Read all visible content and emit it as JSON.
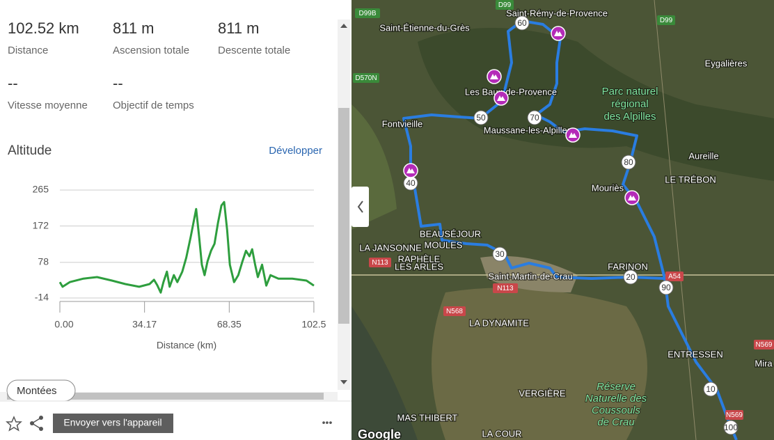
{
  "stats": [
    {
      "value": "102.52 km",
      "label": "Distance"
    },
    {
      "value": "811 m",
      "label": "Ascension totale"
    },
    {
      "value": "811 m",
      "label": "Descente totale"
    },
    {
      "value": "--",
      "label": "Vitesse moyenne"
    },
    {
      "value": "--",
      "label": "Objectif de temps"
    }
  ],
  "altitude": {
    "heading": "Altitude",
    "expand_link": "Développer"
  },
  "chart_data": {
    "type": "line",
    "x_label": "Distance (km)",
    "color": "#2e9e3e",
    "x": [
      0,
      1.1,
      4,
      9.5,
      15,
      21,
      26.4,
      32,
      36.2,
      38,
      39.3,
      40.7,
      41.8,
      43.2,
      44.3,
      46,
      47.4,
      49.4,
      51,
      52.8,
      53.9,
      55,
      56.2,
      57.3,
      58.4,
      59.6,
      61,
      62.4,
      63.8,
      65.2,
      66.3,
      67.5,
      68.6,
      70.3,
      72,
      73.7,
      75.1,
      76.5,
      77.6,
      78.8,
      79.9,
      81.6,
      83.3,
      85,
      88.2,
      93.8,
      99.5,
      102.52
    ],
    "values": [
      27,
      15,
      27,
      36,
      40,
      31,
      22,
      15,
      22,
      33,
      19,
      0,
      27,
      54,
      15,
      45,
      27,
      54,
      90,
      144,
      180,
      216,
      144,
      72,
      45,
      81,
      108,
      126,
      180,
      225,
      234,
      162,
      72,
      27,
      45,
      81,
      108,
      94,
      112,
      72,
      40,
      72,
      18,
      45,
      36,
      36,
      31,
      18
    ],
    "xlim": [
      0,
      102.52
    ],
    "xticks": [
      {
        "value": 0,
        "label": "0.00"
      },
      34.17,
      68.35,
      102.5
    ],
    "ylim": [
      -14,
      265
    ],
    "yticks": [
      -14,
      78,
      172,
      265
    ],
    "grid": true
  },
  "tab": "Montées",
  "footer": {
    "send_button": "Envoyer vers l'appareil",
    "more": "•••"
  },
  "map": {
    "labels": [
      "Saint-Rémy-de-Provence",
      "Saint-Étienne-du-Grès",
      "Eygalières",
      "Les Baux-de-Provence",
      "Fontvieille",
      "Maussane-les-Alpilles",
      "Aureille",
      "Mouriès",
      "LE TRÉBON",
      "BEAUSÉJOUR",
      "MOULES",
      "LA JANSONNE",
      "RAPHÈLE",
      "LES ARLES",
      "Saint-Martin-de-Crau",
      "FARINON",
      "LA DYNAMITE",
      "ENTRESSEN",
      "Mira",
      "VERGIÈRE",
      "MAS THIBERT",
      "LA COUR",
      "Google"
    ],
    "park": [
      "Parc naturel",
      "régional",
      "des Alpilles"
    ],
    "reserve": [
      "Réserve",
      "Naturelle des",
      "Coussouls",
      "de Crau"
    ],
    "roads": [
      "D99B",
      "D99",
      "D99",
      "D570N",
      "N113",
      "N113",
      "N568",
      "A54",
      "N569",
      "N569"
    ],
    "km_markers": [
      "60",
      "50",
      "70",
      "80",
      "40",
      "30",
      "20",
      "90",
      "10",
      "100"
    ]
  }
}
